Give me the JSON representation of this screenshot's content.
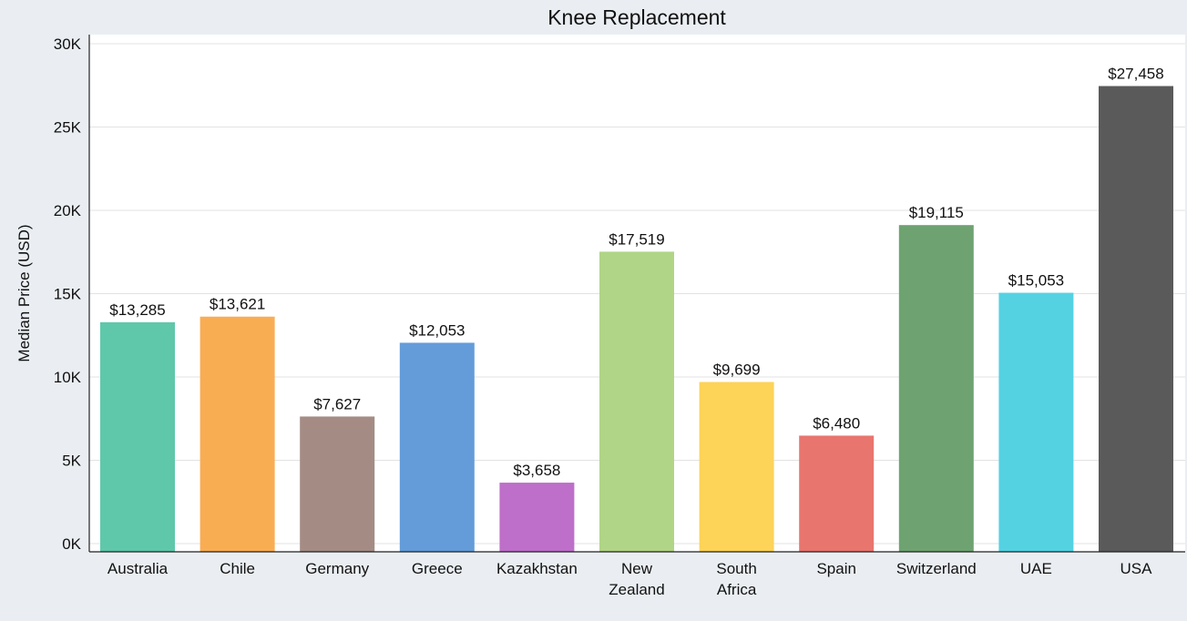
{
  "chart_data": {
    "type": "bar",
    "title": "Knee Replacement",
    "xlabel": "",
    "ylabel": "Median Price (USD)",
    "ylim": [
      0,
      30000
    ],
    "yticks": [
      0,
      5000,
      10000,
      15000,
      20000,
      25000,
      30000
    ],
    "ytick_labels": [
      "0K",
      "5K",
      "10K",
      "15K",
      "20K",
      "25K",
      "30K"
    ],
    "grid": true,
    "legend": "none",
    "categories": [
      [
        "Australia"
      ],
      [
        "Chile"
      ],
      [
        "Germany"
      ],
      [
        "Greece"
      ],
      [
        "Kazakhstan"
      ],
      [
        "New",
        "Zealand"
      ],
      [
        "South",
        "Africa"
      ],
      [
        "Spain"
      ],
      [
        "Switzerland"
      ],
      [
        "UAE"
      ],
      [
        "USA"
      ]
    ],
    "values": [
      13285,
      13621,
      7627,
      12053,
      3658,
      17519,
      9699,
      6480,
      19115,
      15053,
      27458
    ],
    "value_labels": [
      "$13,285",
      "$13,621",
      "$7,627",
      "$12,053",
      "$3,658",
      "$17,519",
      "$9,699",
      "$6,480",
      "$19,115",
      "$15,053",
      "$27,458"
    ],
    "colors": [
      "#5fc8aa",
      "#f9ad53",
      "#a48c84",
      "#649cd9",
      "#bd6fc9",
      "#b0d586",
      "#fdd358",
      "#e8756e",
      "#6ea371",
      "#54d2e2",
      "#5a5a5a"
    ]
  }
}
